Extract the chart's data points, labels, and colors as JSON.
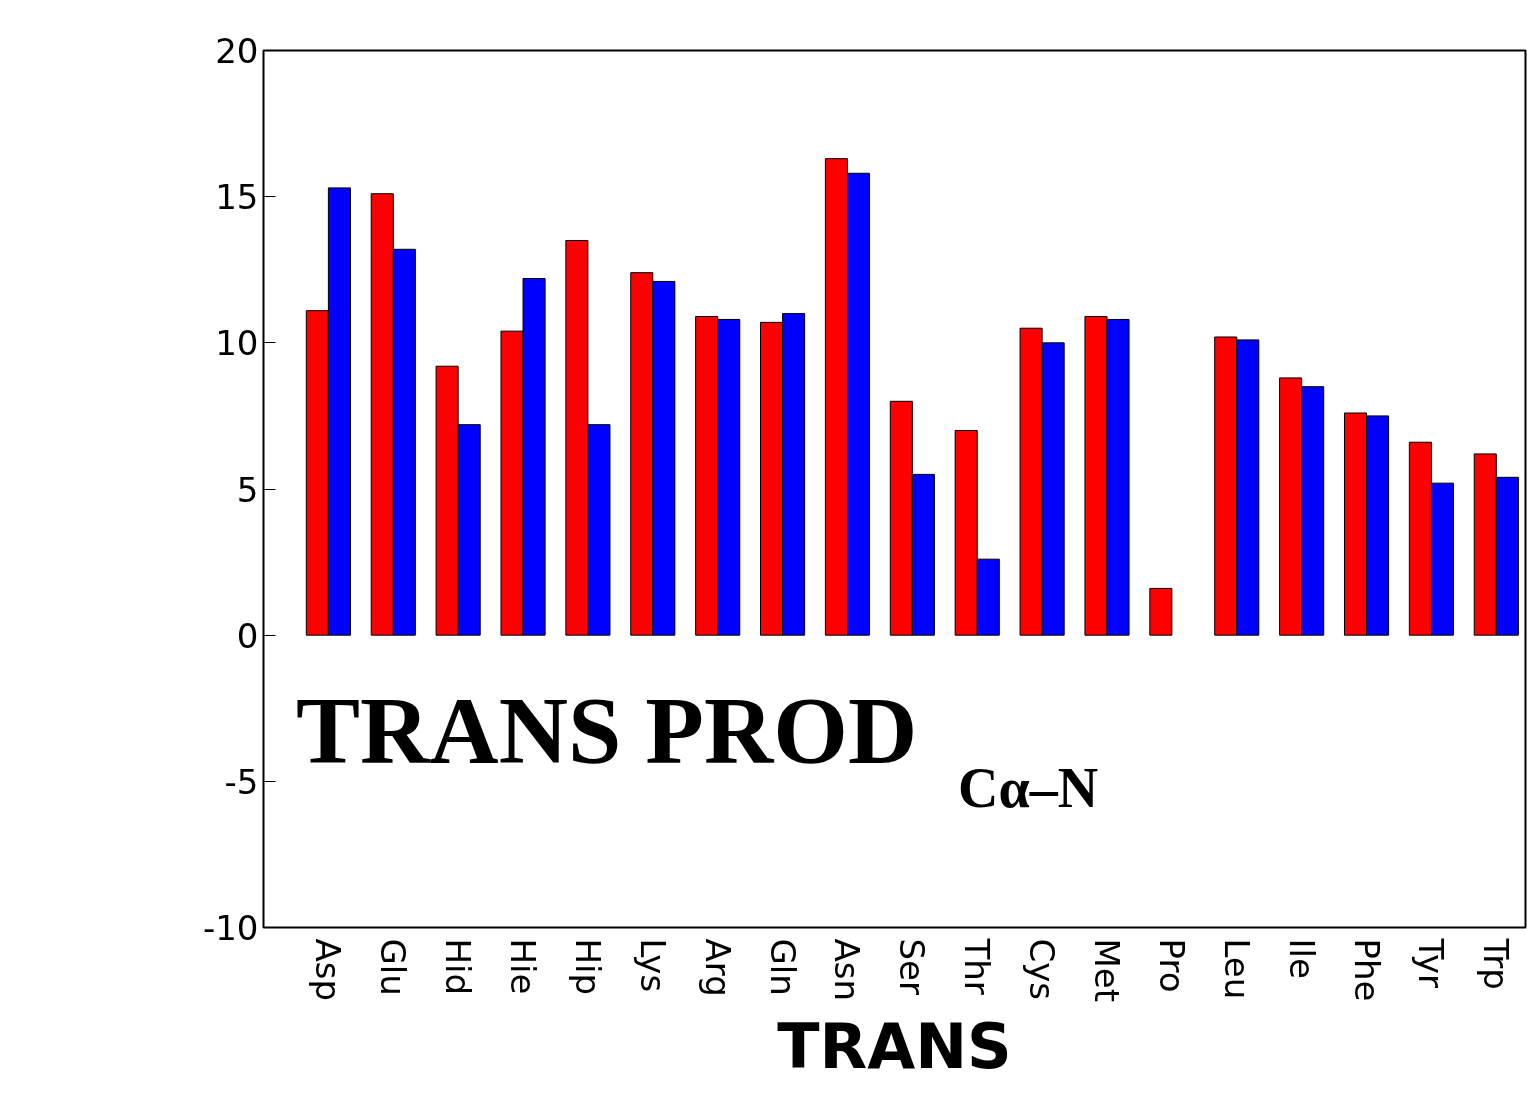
{
  "chart_data": {
    "type": "bar",
    "xlabel": "TRANS",
    "categories": [
      "Asp",
      "Glu",
      "Hid",
      "Hie",
      "Hip",
      "Lys",
      "Arg",
      "Gln",
      "Asn",
      "Ser",
      "Thr",
      "Cys",
      "Met",
      "Pro",
      "Leu",
      "Ile",
      "Phe",
      "Tyr",
      "Trp"
    ],
    "series": [
      {
        "color": "#ff0000",
        "values": [
          11.1,
          15.1,
          9.2,
          10.4,
          13.5,
          12.4,
          10.9,
          10.7,
          16.3,
          8.0,
          7.0,
          10.5,
          10.9,
          1.6,
          10.2,
          8.8,
          7.6,
          6.6,
          6.2
        ]
      },
      {
        "color": "#0000ff",
        "values": [
          15.3,
          13.2,
          7.2,
          12.2,
          7.2,
          12.1,
          10.8,
          11.0,
          15.8,
          5.5,
          2.6,
          10.0,
          10.8,
          null,
          10.1,
          8.5,
          7.5,
          5.2,
          5.4
        ]
      }
    ],
    "ylim": [
      -10,
      20
    ],
    "yticks": [
      -10,
      -5,
      0,
      5,
      10,
      15,
      20
    ],
    "grid": false,
    "annotations": [
      "TRANS PROD$_{Cα–N}$"
    ]
  }
}
